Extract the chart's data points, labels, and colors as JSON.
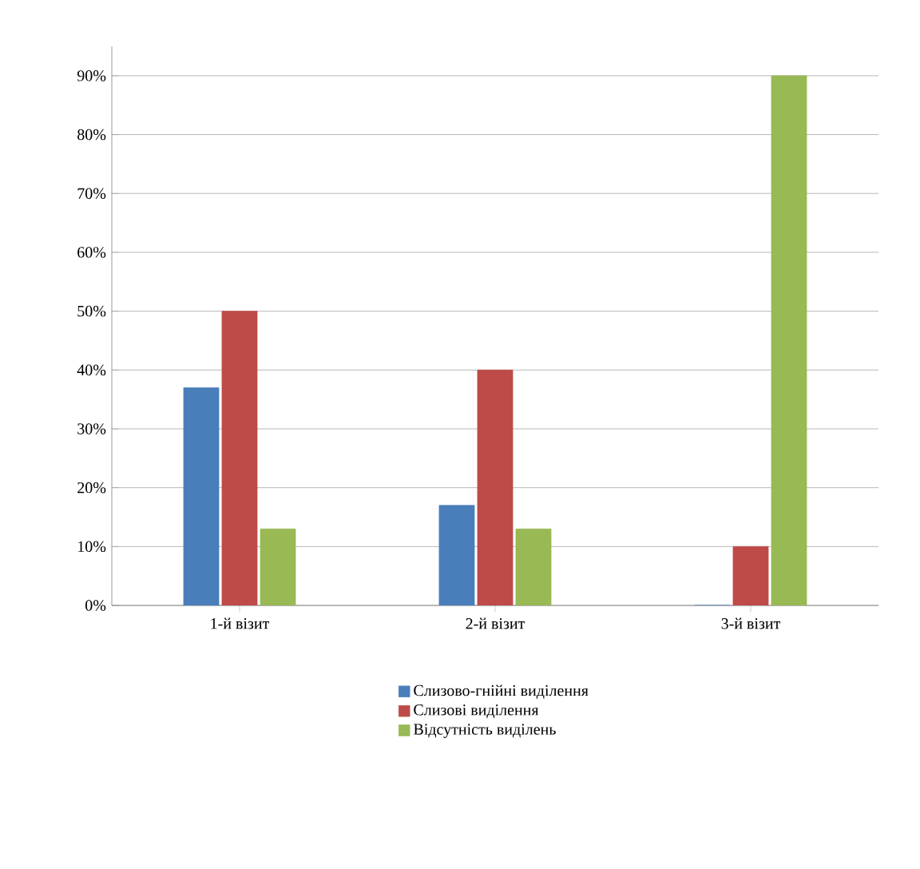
{
  "chart_data": {
    "type": "bar",
    "categories": [
      "1-й візит",
      "2-й візит",
      "3-й візит"
    ],
    "series": [
      {
        "name": "Слизово-гнійні виділення",
        "color": "#4a7ebb",
        "values": [
          37,
          17,
          0
        ]
      },
      {
        "name": "Слизові виділення",
        "color": "#be4b48",
        "values": [
          50,
          40,
          10
        ]
      },
      {
        "name": "Відсутність виділень",
        "color": "#98b954",
        "values": [
          13,
          13,
          90
        ]
      }
    ],
    "ylim": [
      0,
      95
    ],
    "yticks": [
      {
        "value": 0,
        "label": "0%"
      },
      {
        "value": 10,
        "label": "10%"
      },
      {
        "value": 20,
        "label": "20%"
      },
      {
        "value": 30,
        "label": "30%"
      },
      {
        "value": 40,
        "label": "40%"
      },
      {
        "value": 50,
        "label": "50%"
      },
      {
        "value": 60,
        "label": "60%"
      },
      {
        "value": 70,
        "label": "70%"
      },
      {
        "value": 80,
        "label": "80%"
      },
      {
        "value": 90,
        "label": "90%"
      }
    ],
    "grid": "y",
    "legend": "bottom"
  }
}
